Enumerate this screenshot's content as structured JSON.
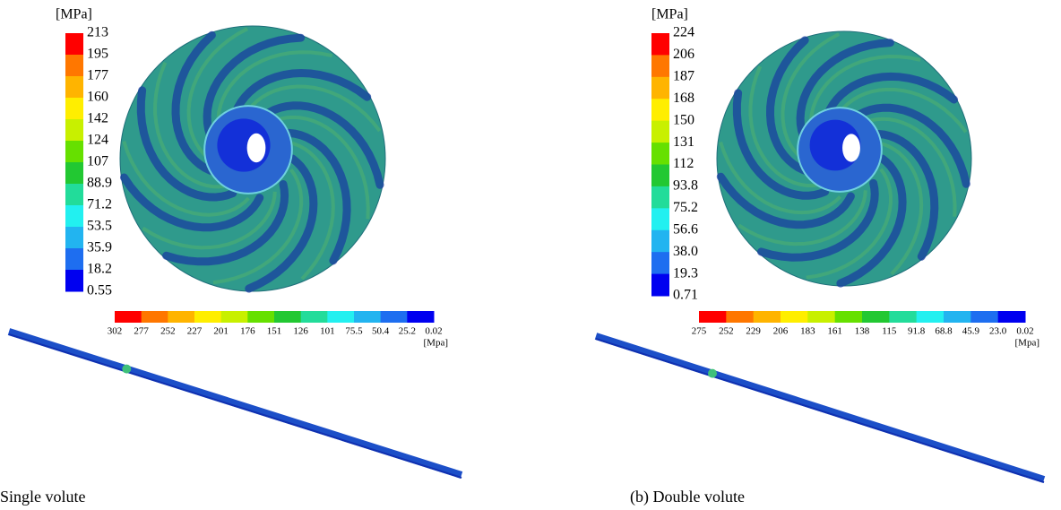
{
  "legend_colors": [
    "#ff0000",
    "#ff7700",
    "#ffb400",
    "#ffee00",
    "#c8f000",
    "#66e000",
    "#22c832",
    "#22dc9a",
    "#22f0f0",
    "#22b4f0",
    "#1e6ef0",
    "#0000f0"
  ],
  "panels": [
    {
      "caption": "Single volute",
      "impeller_legend": {
        "unit": "[MPa]",
        "labels": [
          "213",
          "195",
          "177",
          "160",
          "142",
          "124",
          "107",
          "88.9",
          "71.2",
          "53.5",
          "35.9",
          "18.2",
          "0.55"
        ]
      },
      "shaft_legend": {
        "unit": "[Mpa]",
        "labels": [
          "302",
          "277",
          "252",
          "227",
          "201",
          "176",
          "151",
          "126",
          "101",
          "75.5",
          "50.4",
          "25.2",
          "0.02"
        ]
      }
    },
    {
      "caption": "(b) Double volute",
      "impeller_legend": {
        "unit": "[MPa]",
        "labels": [
          "224",
          "206",
          "187",
          "168",
          "150",
          "131",
          "112",
          "93.8",
          "75.2",
          "56.6",
          "38.0",
          "19.3",
          "0.71"
        ]
      },
      "shaft_legend": {
        "unit": "[Mpa]",
        "labels": [
          "275",
          "252",
          "229",
          "206",
          "183",
          "161",
          "138",
          "115",
          "91.8",
          "68.8",
          "45.9",
          "23.0",
          "0.02"
        ]
      }
    }
  ]
}
